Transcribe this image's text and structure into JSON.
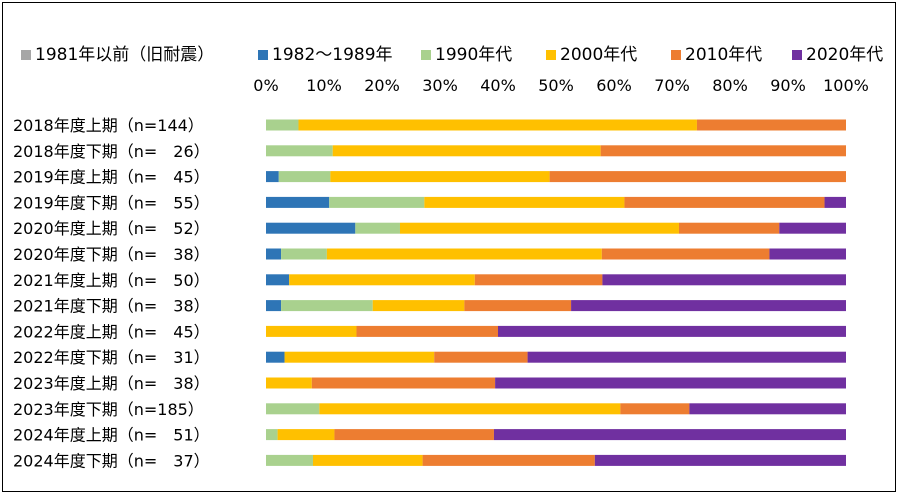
{
  "chart_data": {
    "type": "bar",
    "orientation": "horizontal",
    "stacked": "percent",
    "title": "",
    "xlabel": "",
    "ylabel": "",
    "xlim": [
      0,
      100
    ],
    "x_ticks": [
      "0%",
      "10%",
      "20%",
      "30%",
      "40%",
      "50%",
      "60%",
      "70%",
      "80%",
      "90%",
      "100%"
    ],
    "grid": false,
    "legend_position": "top",
    "categories": [
      "2018年度上期（n=144）",
      "2018年度下期（n=　26）",
      "2019年度上期（n=　45）",
      "2019年度下期（n=　55）",
      "2020年度上期（n=　52）",
      "2020年度下期（n=　38）",
      "2021年度上期（n=　50）",
      "2021年度下期（n=　38）",
      "2022年度上期（n=　45）",
      "2022年度下期（n=　31）",
      "2023年度上期（n=　38）",
      "2023年度下期（n=185）",
      "2024年度上期（n=　51）",
      "2024年度下期（n=　37）"
    ],
    "series": [
      {
        "name": "1981年以前（旧耐震）",
        "color": "#a6a6a6",
        "values": [
          0,
          0,
          0,
          0,
          0,
          0,
          0,
          0,
          0,
          0,
          0,
          0,
          0,
          0
        ]
      },
      {
        "name": "1982～1989年",
        "color": "#2e75b6",
        "values": [
          0,
          0,
          2.2,
          10.9,
          15.4,
          2.6,
          4.0,
          2.6,
          0,
          3.2,
          0,
          0,
          0,
          0
        ]
      },
      {
        "name": "1990年代",
        "color": "#a9d18e",
        "values": [
          5.6,
          11.5,
          8.9,
          16.4,
          7.7,
          7.9,
          0,
          15.8,
          0,
          0,
          0,
          9.2,
          2.0,
          8.1
        ]
      },
      {
        "name": "2000年代",
        "color": "#ffc000",
        "values": [
          68.7,
          46.2,
          37.8,
          34.5,
          48.1,
          47.4,
          32.0,
          15.8,
          15.6,
          25.8,
          7.9,
          51.9,
          9.8,
          18.9
        ]
      },
      {
        "name": "2010年代",
        "color": "#ed7d31",
        "values": [
          25.7,
          42.3,
          51.1,
          34.5,
          17.3,
          28.9,
          22.0,
          18.4,
          24.4,
          16.1,
          31.6,
          11.9,
          27.5,
          29.7
        ]
      },
      {
        "name": "2020年代",
        "color": "#7030a0",
        "values": [
          0,
          0,
          0,
          3.7,
          11.5,
          13.2,
          42.0,
          47.4,
          60.0,
          54.9,
          60.5,
          27.0,
          60.7,
          43.3
        ]
      }
    ]
  }
}
